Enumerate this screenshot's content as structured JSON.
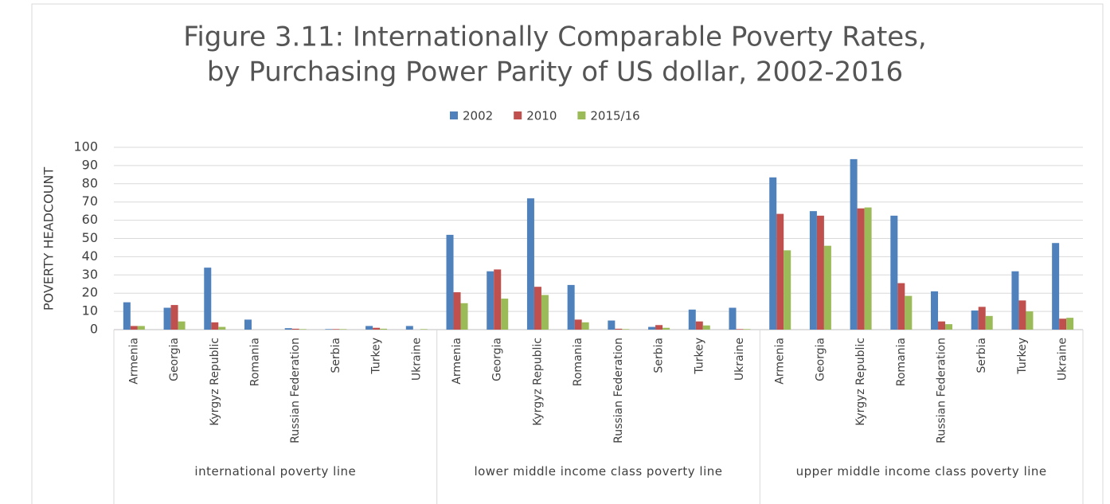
{
  "chart_data": {
    "type": "bar",
    "title": [
      "Figure 3.11: Internationally Comparable Poverty Rates,",
      "by Purchasing Power Parity of US dollar, 2002-2016"
    ],
    "y_label": "POVERTY HEADCOUNT",
    "categories": [
      "Armenia",
      "Georgia",
      "Kyrgyz Republic",
      "Romania",
      "Russian Federation",
      "Serbia",
      "Turkey",
      "Ukraine",
      "Armenia",
      "Georgia",
      "Kyrgyz Republic",
      "Romania",
      "Russian Federation",
      "Serbia",
      "Turkey",
      "Ukraine",
      "Armenia",
      "Georgia",
      "Kyrgyz Republic",
      "Romania",
      "Russian Federation",
      "Serbia",
      "Turkey",
      "Ukraine"
    ],
    "category_groups": [
      "international poverty line",
      "lower middle income class poverty line",
      "upper middle income class poverty line"
    ],
    "series": [
      {
        "name": "2002",
        "color": "#4f81bd",
        "values": [
          15,
          12,
          34,
          5.5,
          0.8,
          0.3,
          2,
          2,
          52,
          32,
          72,
          24.5,
          5,
          1.5,
          11,
          12,
          83.5,
          65,
          93.5,
          62.5,
          21,
          10.5,
          32,
          47.5
        ]
      },
      {
        "name": "2010",
        "color": "#c0504d",
        "values": [
          2,
          13.5,
          4,
          0,
          0.5,
          0.3,
          1,
          0,
          20.5,
          33,
          23.5,
          5.5,
          0.5,
          2.5,
          4.5,
          0.3,
          63.5,
          62.5,
          66.5,
          25.5,
          4.5,
          12.5,
          16,
          6
        ]
      },
      {
        "name": "2015/16",
        "color": "#9bbb59",
        "values": [
          2,
          4.5,
          1.5,
          0,
          0.3,
          0.3,
          0.5,
          0.3,
          14.5,
          17,
          19,
          4,
          0.3,
          1,
          2.3,
          0.3,
          43.5,
          46,
          67,
          18.5,
          3,
          7.5,
          10,
          6.5
        ]
      }
    ],
    "ylim": [
      0,
      100
    ],
    "yticks": [
      0,
      10,
      20,
      30,
      40,
      50,
      60,
      70,
      80,
      90,
      100
    ],
    "grid": true,
    "legend": "top"
  }
}
